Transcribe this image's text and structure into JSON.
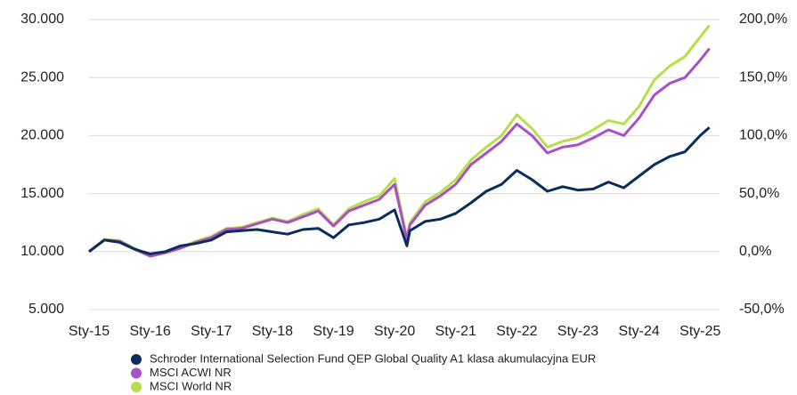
{
  "chart_data": {
    "type": "line",
    "x": [
      2015,
      2015.25,
      2015.5,
      2015.75,
      2016,
      2016.25,
      2016.5,
      2016.75,
      2017,
      2017.25,
      2017.5,
      2017.75,
      2018,
      2018.25,
      2018.5,
      2018.75,
      2019,
      2019.25,
      2019.5,
      2019.75,
      2020,
      2020.2,
      2020.25,
      2020.5,
      2020.75,
      2021,
      2021.25,
      2021.5,
      2021.75,
      2022,
      2022.25,
      2022.5,
      2022.75,
      2023,
      2023.25,
      2023.5,
      2023.75,
      2024,
      2024.25,
      2024.5,
      2024.75,
      2025,
      2025.15
    ],
    "series": [
      {
        "name": "Schroder International Selection Fund QEP Global Quality A1 klasa akumulacyjna EUR",
        "color": "#0b2c5c",
        "values": [
          10000,
          11000,
          10800,
          10200,
          9800,
          10000,
          10500,
          10700,
          11000,
          11700,
          11800,
          11900,
          11700,
          11500,
          11900,
          12000,
          11200,
          12300,
          12500,
          12800,
          13600,
          10500,
          11800,
          12600,
          12800,
          13300,
          14200,
          15200,
          15800,
          17000,
          16200,
          15200,
          15600,
          15300,
          15400,
          16000,
          15500,
          16500,
          17500,
          18200,
          18600,
          20000,
          20700
        ]
      },
      {
        "name": "MSCI ACWI NR",
        "color": "#a94fc7",
        "values": [
          10000,
          11000,
          10900,
          10200,
          9600,
          9900,
          10300,
          10800,
          11200,
          11900,
          12000,
          12400,
          12800,
          12500,
          13000,
          13500,
          12200,
          13500,
          14000,
          14500,
          15800,
          11000,
          12300,
          14000,
          14800,
          15800,
          17500,
          18500,
          19500,
          21000,
          20000,
          18500,
          19000,
          19200,
          19800,
          20500,
          20000,
          21500,
          23500,
          24500,
          25000,
          26500,
          27500
        ]
      },
      {
        "name": "MSCI World NR",
        "color": "#b5e04a",
        "values": [
          10000,
          11050,
          10950,
          10250,
          9650,
          9950,
          10400,
          10900,
          11300,
          12000,
          12100,
          12500,
          12900,
          12600,
          13200,
          13700,
          12300,
          13700,
          14300,
          14800,
          16300,
          11200,
          12500,
          14300,
          15100,
          16200,
          17900,
          19000,
          20000,
          21800,
          20600,
          19000,
          19500,
          19800,
          20500,
          21300,
          21000,
          22500,
          24800,
          26000,
          26800,
          28500,
          29500
        ]
      }
    ],
    "xlim": [
      2015,
      2025.2
    ],
    "xticks": [
      {
        "value": 2015,
        "label": "Sty-15"
      },
      {
        "value": 2016,
        "label": "Sty-16"
      },
      {
        "value": 2017,
        "label": "Sty-17"
      },
      {
        "value": 2018,
        "label": "Sty-18"
      },
      {
        "value": 2019,
        "label": "Sty-19"
      },
      {
        "value": 2020,
        "label": "Sty-20"
      },
      {
        "value": 2021,
        "label": "Sty-21"
      },
      {
        "value": 2022,
        "label": "Sty-22"
      },
      {
        "value": 2023,
        "label": "Sty-23"
      },
      {
        "value": 2024,
        "label": "Sty-24"
      },
      {
        "value": 2025,
        "label": "Sty-25"
      }
    ],
    "ylim": [
      5000,
      30000
    ],
    "yticks": [
      {
        "value": 5000,
        "label": "5.000"
      },
      {
        "value": 10000,
        "label": "10.000"
      },
      {
        "value": 15000,
        "label": "15.000"
      },
      {
        "value": 20000,
        "label": "20.000"
      },
      {
        "value": 25000,
        "label": "25.000"
      },
      {
        "value": 30000,
        "label": "30.000"
      }
    ],
    "y2lim": [
      -50,
      200
    ],
    "y2ticks": [
      {
        "value": -50,
        "label": "-50,0%"
      },
      {
        "value": 0,
        "label": "0,0%"
      },
      {
        "value": 50,
        "label": "50,0%"
      },
      {
        "value": 100,
        "label": "100,0%"
      },
      {
        "value": 150,
        "label": "150,0%"
      },
      {
        "value": 200,
        "label": "200,0%"
      }
    ],
    "grid": true,
    "legend": "bottom"
  }
}
